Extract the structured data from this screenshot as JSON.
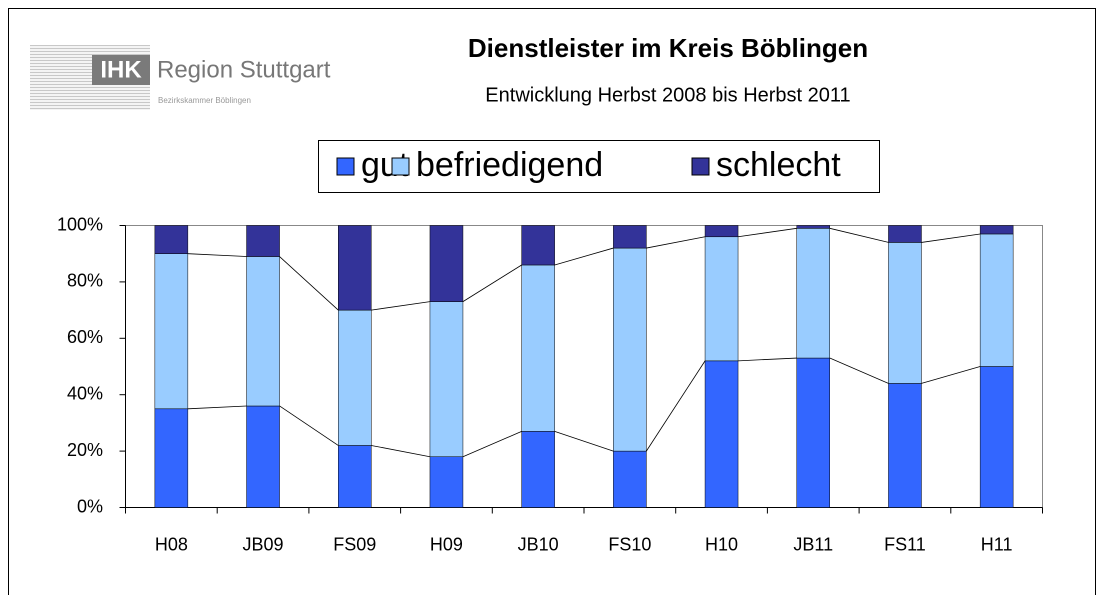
{
  "logo": {
    "mark": "IHK",
    "name": "Region Stuttgart",
    "sub": "Bezirkskammer Böblingen"
  },
  "chart_data": {
    "type": "stacked_bar",
    "title": "Dienstleister im Kreis Böblingen",
    "subtitle": "Entwicklung Herbst 2008 bis Herbst 2011",
    "categories": [
      "H08",
      "JB09",
      "FS09",
      "H09",
      "JB10",
      "FS10",
      "H10",
      "JB11",
      "FS11",
      "H11"
    ],
    "series": [
      {
        "name": "gut",
        "color": "#3366ff",
        "values": [
          35,
          36,
          22,
          18,
          27,
          20,
          52,
          53,
          44,
          50
        ]
      },
      {
        "name": "befriedigend",
        "color": "#99ccff",
        "values": [
          55,
          53,
          48,
          55,
          59,
          72,
          44,
          46,
          50,
          47
        ]
      },
      {
        "name": "schlecht",
        "color": "#333399",
        "values": [
          10,
          11,
          30,
          27,
          14,
          8,
          4,
          1,
          6,
          3
        ]
      }
    ],
    "ylim": [
      0,
      100
    ],
    "yticks": [
      {
        "value": 0,
        "label": "0%"
      },
      {
        "value": 20,
        "label": "20%"
      },
      {
        "value": 40,
        "label": "40%"
      },
      {
        "value": 60,
        "label": "60%"
      },
      {
        "value": 80,
        "label": "80%"
      },
      {
        "value": 100,
        "label": "100%"
      }
    ],
    "legend": "top",
    "series_lines": true
  }
}
